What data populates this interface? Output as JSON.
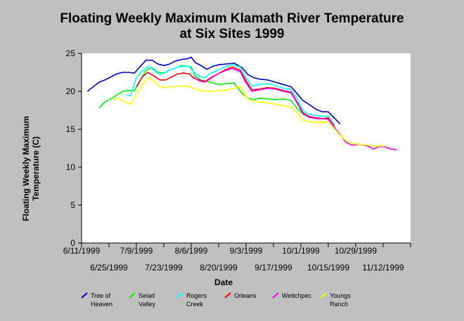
{
  "chart_data": {
    "type": "line",
    "title_lines": [
      "Floating Weekly Maximum Klamath River Temperature",
      "at Six Sites 1999"
    ],
    "xlabel": "Date",
    "ylabel_lines": [
      "Floating Weekly Maximum",
      "Temperature (C)"
    ],
    "ylim": [
      0,
      25
    ],
    "yticks": [
      0,
      5,
      10,
      15,
      20,
      25
    ],
    "xlim": [
      "1999-06-11",
      "1999-11-26"
    ],
    "xticks": [
      {
        "date": "1999-06-11",
        "label": "6/11/1999",
        "row": 1
      },
      {
        "date": "1999-06-25",
        "label": "6/25/1999",
        "row": 2
      },
      {
        "date": "1999-07-09",
        "label": "7/9/1999",
        "row": 1
      },
      {
        "date": "1999-07-23",
        "label": "7/23/1999",
        "row": 2
      },
      {
        "date": "1999-08-06",
        "label": "8/6/1999",
        "row": 1
      },
      {
        "date": "1999-08-20",
        "label": "8/20/1999",
        "row": 2
      },
      {
        "date": "1999-09-03",
        "label": "9/3/1999",
        "row": 1
      },
      {
        "date": "1999-09-17",
        "label": "9/17/1999",
        "row": 2
      },
      {
        "date": "1999-10-01",
        "label": "10/1/1999",
        "row": 1
      },
      {
        "date": "1999-10-15",
        "label": "10/15/1999",
        "row": 2
      },
      {
        "date": "1999-10-29",
        "label": "10/29/1999",
        "row": 1
      },
      {
        "date": "1999-11-12",
        "label": "11/12/1999",
        "row": 2
      },
      {
        "date": "1999-11-26",
        "label": "",
        "row": 1
      }
    ],
    "grid": false,
    "legend_position": "bottom",
    "series": [
      {
        "name": "Tree of Heaven",
        "legend_lines": [
          "Tree of",
          "Heaven"
        ],
        "color": "#0000cc",
        "points": [
          [
            "1999-06-14",
            20.0
          ],
          [
            "1999-06-17",
            20.6
          ],
          [
            "1999-06-20",
            21.2
          ],
          [
            "1999-06-23",
            21.5
          ],
          [
            "1999-06-26",
            21.9
          ],
          [
            "1999-06-29",
            22.3
          ],
          [
            "1999-07-02",
            22.5
          ],
          [
            "1999-07-05",
            22.5
          ],
          [
            "1999-07-08",
            22.4
          ],
          [
            "1999-07-11",
            23.3
          ],
          [
            "1999-07-14",
            24.1
          ],
          [
            "1999-07-17",
            24.1
          ],
          [
            "1999-07-20",
            23.6
          ],
          [
            "1999-07-23",
            23.4
          ],
          [
            "1999-07-26",
            23.6
          ],
          [
            "1999-07-29",
            24.0
          ],
          [
            "1999-08-01",
            24.2
          ],
          [
            "1999-08-04",
            24.3
          ],
          [
            "1999-08-06",
            24.5
          ],
          [
            "1999-08-08",
            23.8
          ],
          [
            "1999-08-11",
            23.4
          ],
          [
            "1999-08-14",
            22.9
          ],
          [
            "1999-08-17",
            23.3
          ],
          [
            "1999-08-20",
            23.5
          ],
          [
            "1999-08-24",
            23.6
          ],
          [
            "1999-08-28",
            23.7
          ],
          [
            "1999-09-01",
            23.1
          ],
          [
            "1999-09-04",
            22.2
          ],
          [
            "1999-09-07",
            21.8
          ],
          [
            "1999-09-10",
            21.6
          ],
          [
            "1999-09-14",
            21.5
          ],
          [
            "1999-09-18",
            21.2
          ],
          [
            "1999-09-22",
            20.9
          ],
          [
            "1999-09-26",
            20.6
          ],
          [
            "1999-09-29",
            19.7
          ],
          [
            "1999-10-02",
            18.8
          ],
          [
            "1999-10-05",
            18.3
          ],
          [
            "1999-10-09",
            17.6
          ],
          [
            "1999-10-12",
            17.3
          ],
          [
            "1999-10-15",
            17.3
          ],
          [
            "1999-10-18",
            16.5
          ],
          [
            "1999-10-21",
            15.7
          ]
        ]
      },
      {
        "name": "Seiad Valley",
        "legend_lines": [
          "Seiad",
          "Valley"
        ],
        "color": "#00ee00",
        "points": [
          [
            "1999-06-20",
            17.8
          ],
          [
            "1999-06-23",
            18.6
          ],
          [
            "1999-06-26",
            19.0
          ],
          [
            "1999-06-29",
            19.5
          ],
          [
            "1999-07-02",
            20.0
          ],
          [
            "1999-07-05",
            20.1
          ],
          [
            "1999-07-08",
            20.1
          ],
          [
            "1999-07-11",
            21.4
          ],
          [
            "1999-07-14",
            22.8
          ],
          [
            "1999-07-17",
            23.1
          ],
          [
            "1999-07-20",
            22.5
          ],
          [
            "1999-07-23",
            22.4
          ],
          [
            "1999-07-26",
            22.8
          ],
          [
            "1999-07-29",
            23.1
          ],
          [
            "1999-08-01",
            23.4
          ],
          [
            "1999-08-04",
            23.3
          ],
          [
            "1999-08-06",
            23.2
          ],
          [
            "1999-08-08",
            22.0
          ],
          [
            "1999-08-11",
            21.5
          ],
          [
            "1999-08-14",
            21.3
          ],
          [
            "1999-08-17",
            21.1
          ],
          [
            "1999-08-20",
            20.9
          ],
          [
            "1999-08-24",
            21.0
          ],
          [
            "1999-08-28",
            21.1
          ],
          [
            "1999-09-01",
            19.7
          ],
          [
            "1999-09-04",
            19.1
          ],
          [
            "1999-09-07",
            18.9
          ],
          [
            "1999-09-10",
            19.1
          ],
          [
            "1999-09-14",
            19.0
          ],
          [
            "1999-09-18",
            18.9
          ],
          [
            "1999-09-22",
            19.0
          ],
          [
            "1999-09-26",
            18.8
          ],
          [
            "1999-09-29",
            17.8
          ],
          [
            "1999-10-02",
            17.0
          ],
          [
            "1999-10-05",
            16.6
          ],
          [
            "1999-10-09",
            16.4
          ],
          [
            "1999-10-12",
            16.4
          ],
          [
            "1999-10-15",
            16.4
          ],
          [
            "1999-10-18",
            15.5
          ]
        ]
      },
      {
        "name": "Rogers Creek",
        "legend_lines": [
          "Rogers",
          "Creek"
        ],
        "color": "#00ffff",
        "points": [
          [
            "1999-07-04",
            19.5
          ],
          [
            "1999-07-06",
            19.4
          ],
          [
            "1999-07-09",
            21.8
          ],
          [
            "1999-07-12",
            22.7
          ],
          [
            "1999-07-15",
            23.3
          ],
          [
            "1999-07-18",
            22.8
          ],
          [
            "1999-07-21",
            22.2
          ],
          [
            "1999-07-24",
            22.5
          ],
          [
            "1999-07-27",
            22.9
          ],
          [
            "1999-07-30",
            23.2
          ],
          [
            "1999-08-02",
            23.3
          ],
          [
            "1999-08-05",
            23.3
          ],
          [
            "1999-08-07",
            22.6
          ],
          [
            "1999-08-10",
            22.0
          ],
          [
            "1999-08-13",
            21.8
          ],
          [
            "1999-08-16",
            22.4
          ],
          [
            "1999-08-19",
            22.7
          ],
          [
            "1999-08-23",
            23.2
          ],
          [
            "1999-08-27",
            23.5
          ],
          [
            "1999-08-31",
            23.2
          ],
          [
            "1999-09-03",
            21.8
          ],
          [
            "1999-09-06",
            20.7
          ],
          [
            "1999-09-10",
            20.9
          ],
          [
            "1999-09-14",
            21.0
          ],
          [
            "1999-09-18",
            20.8
          ],
          [
            "1999-09-22",
            20.4
          ],
          [
            "1999-09-26",
            20.2
          ],
          [
            "1999-09-29",
            19.0
          ],
          [
            "1999-10-02",
            17.5
          ],
          [
            "1999-10-05",
            17.0
          ],
          [
            "1999-10-09",
            16.8
          ],
          [
            "1999-10-12",
            16.7
          ],
          [
            "1999-10-15",
            16.7
          ],
          [
            "1999-10-18",
            15.6
          ]
        ]
      },
      {
        "name": "Orleans",
        "legend_lines": [
          "Orleans"
        ],
        "color": "#ff0000",
        "points": [
          [
            "1999-07-09",
            20.6
          ],
          [
            "1999-07-12",
            21.9
          ],
          [
            "1999-07-15",
            22.5
          ],
          [
            "1999-07-18",
            22.0
          ],
          [
            "1999-07-21",
            21.5
          ],
          [
            "1999-07-24",
            21.5
          ],
          [
            "1999-07-27",
            21.9
          ],
          [
            "1999-07-30",
            22.3
          ],
          [
            "1999-08-02",
            22.4
          ],
          [
            "1999-08-05",
            22.3
          ],
          [
            "1999-08-07",
            21.8
          ],
          [
            "1999-08-10",
            21.5
          ],
          [
            "1999-08-13",
            21.3
          ],
          [
            "1999-08-16",
            21.8
          ],
          [
            "1999-08-19",
            22.2
          ],
          [
            "1999-08-23",
            22.8
          ],
          [
            "1999-08-27",
            23.2
          ],
          [
            "1999-08-31",
            22.8
          ],
          [
            "1999-09-03",
            21.4
          ],
          [
            "1999-09-06",
            20.2
          ],
          [
            "1999-09-10",
            20.3
          ],
          [
            "1999-09-14",
            20.5
          ],
          [
            "1999-09-18",
            20.4
          ],
          [
            "1999-09-22",
            20.1
          ],
          [
            "1999-09-26",
            19.9
          ],
          [
            "1999-09-29",
            18.6
          ],
          [
            "1999-10-02",
            17.2
          ],
          [
            "1999-10-05",
            16.7
          ],
          [
            "1999-10-09",
            16.5
          ],
          [
            "1999-10-12",
            16.4
          ],
          [
            "1999-10-15",
            16.5
          ],
          [
            "1999-10-18",
            15.4
          ]
        ]
      },
      {
        "name": "Weitchpec",
        "legend_lines": [
          "Weitchpec"
        ],
        "color": "#ee00ee",
        "points": [
          [
            "1999-08-07",
            21.9
          ],
          [
            "1999-08-10",
            21.4
          ],
          [
            "1999-08-13",
            21.2
          ],
          [
            "1999-08-16",
            21.7
          ],
          [
            "1999-08-19",
            22.2
          ],
          [
            "1999-08-23",
            22.7
          ],
          [
            "1999-08-27",
            23.0
          ],
          [
            "1999-08-31",
            22.6
          ],
          [
            "1999-09-03",
            21.1
          ],
          [
            "1999-09-06",
            20.0
          ],
          [
            "1999-09-10",
            20.2
          ],
          [
            "1999-09-14",
            20.4
          ],
          [
            "1999-09-18",
            20.3
          ],
          [
            "1999-09-22",
            20.0
          ],
          [
            "1999-09-26",
            19.8
          ],
          [
            "1999-09-29",
            18.5
          ],
          [
            "1999-10-02",
            17.1
          ],
          [
            "1999-10-05",
            16.6
          ],
          [
            "1999-10-09",
            16.4
          ],
          [
            "1999-10-12",
            16.4
          ],
          [
            "1999-10-15",
            16.3
          ],
          [
            "1999-10-18",
            15.3
          ],
          [
            "1999-10-21",
            14.3
          ],
          [
            "1999-10-24",
            13.3
          ],
          [
            "1999-10-27",
            12.9
          ],
          [
            "1999-10-31",
            13.0
          ],
          [
            "1999-11-04",
            12.8
          ],
          [
            "1999-11-07",
            12.4
          ],
          [
            "1999-11-10",
            12.7
          ],
          [
            "1999-11-13",
            12.7
          ],
          [
            "1999-11-16",
            12.4
          ],
          [
            "1999-11-19",
            12.3
          ]
        ]
      },
      {
        "name": "Youngs Ranch",
        "legend_lines": [
          "Youngs",
          "Ranch"
        ],
        "color": "#ffff00",
        "points": [
          [
            "1999-06-27",
            18.9
          ],
          [
            "1999-06-30",
            19.1
          ],
          [
            "1999-07-03",
            18.6
          ],
          [
            "1999-07-06",
            18.3
          ],
          [
            "1999-07-09",
            19.6
          ],
          [
            "1999-07-12",
            20.8
          ],
          [
            "1999-07-15",
            21.8
          ],
          [
            "1999-07-18",
            21.3
          ],
          [
            "1999-07-21",
            20.6
          ],
          [
            "1999-07-24",
            20.5
          ],
          [
            "1999-07-27",
            20.6
          ],
          [
            "1999-07-30",
            20.7
          ],
          [
            "1999-08-02",
            20.7
          ],
          [
            "1999-08-05",
            20.6
          ],
          [
            "1999-08-08",
            20.3
          ],
          [
            "1999-08-12",
            20.0
          ],
          [
            "1999-08-16",
            20.0
          ],
          [
            "1999-08-20",
            20.1
          ],
          [
            "1999-08-24",
            20.2
          ],
          [
            "1999-08-28",
            20.4
          ],
          [
            "1999-08-31",
            20.7
          ],
          [
            "1999-09-03",
            19.3
          ],
          [
            "1999-09-06",
            18.7
          ],
          [
            "1999-09-10",
            18.6
          ],
          [
            "1999-09-14",
            18.5
          ],
          [
            "1999-09-18",
            18.3
          ],
          [
            "1999-09-22",
            18.1
          ],
          [
            "1999-09-26",
            17.9
          ],
          [
            "1999-09-29",
            17.2
          ],
          [
            "1999-10-02",
            16.2
          ],
          [
            "1999-10-05",
            16.0
          ],
          [
            "1999-10-09",
            15.9
          ],
          [
            "1999-10-12",
            15.9
          ],
          [
            "1999-10-15",
            15.9
          ],
          [
            "1999-10-18",
            15.1
          ],
          [
            "1999-10-21",
            14.2
          ],
          [
            "1999-10-24",
            13.5
          ],
          [
            "1999-10-27",
            13.1
          ],
          [
            "1999-10-31",
            13.0
          ],
          [
            "1999-11-04",
            12.9
          ],
          [
            "1999-11-07",
            12.8
          ],
          [
            "1999-11-10",
            12.8
          ],
          [
            "1999-11-13",
            12.8
          ]
        ]
      }
    ]
  }
}
